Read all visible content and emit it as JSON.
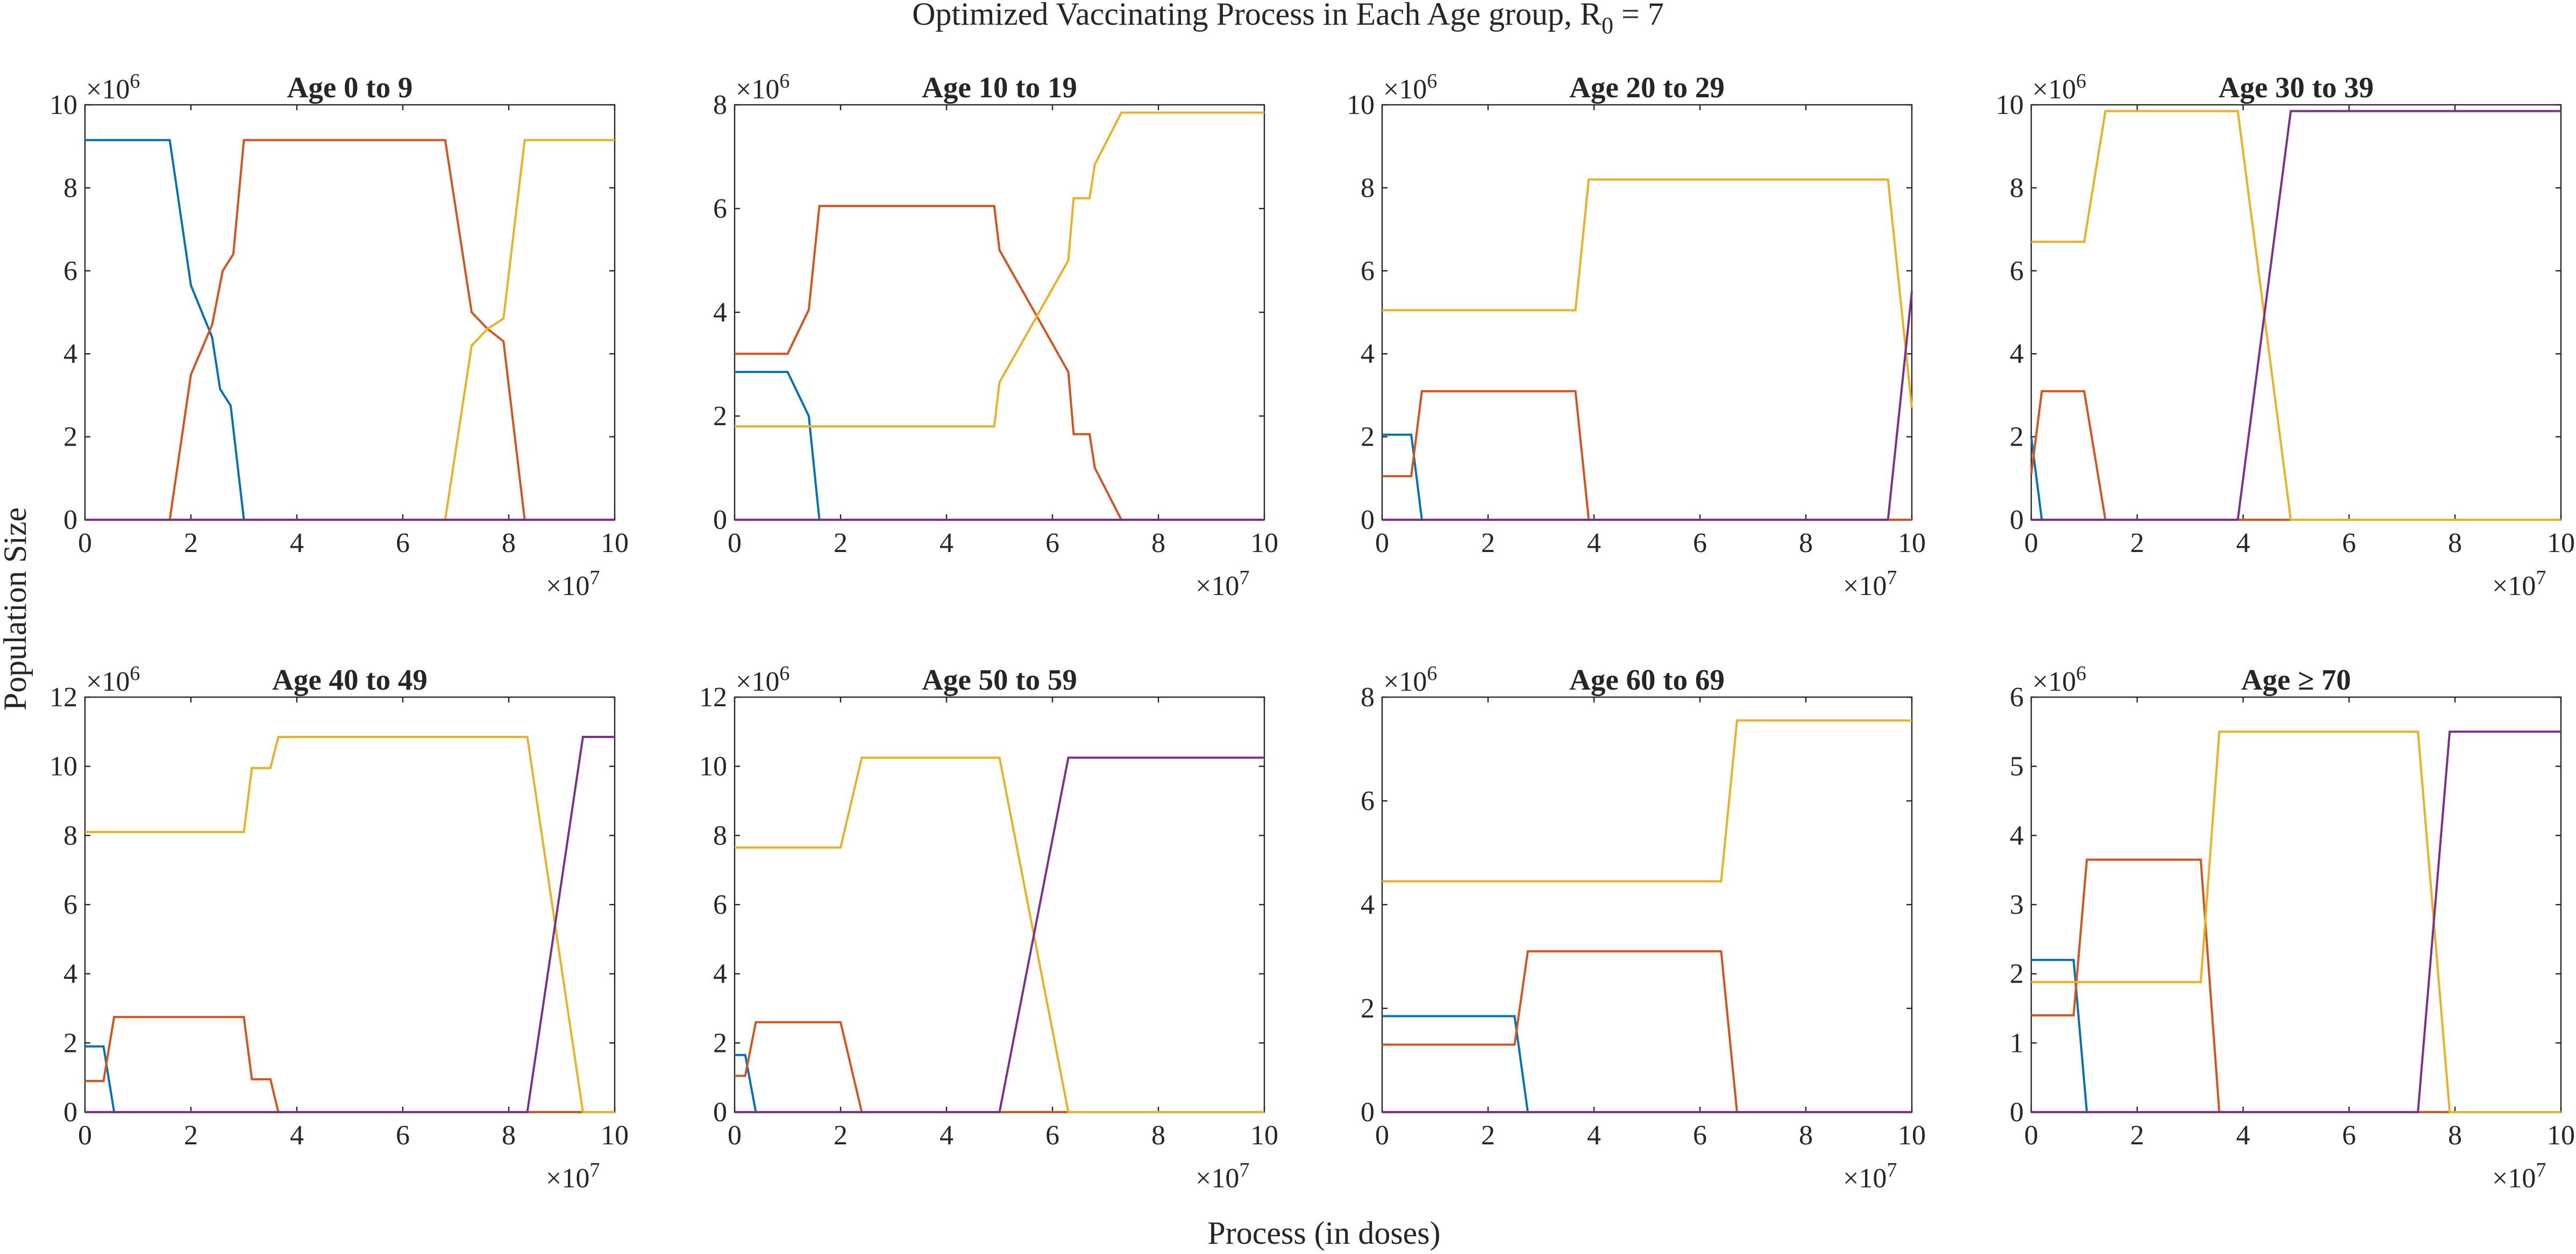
{
  "suptitle": {
    "main": "Optimized Vaccinating Process in Each Age group, R",
    "sub": "0",
    "tail": " = 7"
  },
  "ylabel": "Population Size",
  "xlabel": "Process (in doses)",
  "x_multiplier": {
    "base": "×10",
    "exp": "7"
  },
  "colors": {
    "blue": "#0072BD",
    "red": "#D95319",
    "yellow": "#EDB120",
    "purple": "#7E2F8E"
  },
  "chart_data": [
    {
      "type": "line",
      "title": "Age 0 to 9",
      "x_unit": 10000000,
      "y_unit": 1000000,
      "y_exp": "6",
      "xlim": [
        0,
        10
      ],
      "ylim": [
        0,
        10
      ],
      "xticks": [
        0,
        2,
        4,
        6,
        8,
        10
      ],
      "yticks": [
        0,
        2,
        4,
        6,
        8,
        10
      ],
      "series": [
        {
          "color": "#0072BD",
          "points": [
            [
              0,
              9.15
            ],
            [
              1.6,
              9.15
            ],
            [
              2.0,
              5.65
            ],
            [
              2.4,
              4.4
            ],
            [
              2.55,
              3.15
            ],
            [
              2.75,
              2.75
            ],
            [
              3.0,
              0
            ],
            [
              10,
              0
            ]
          ]
        },
        {
          "color": "#D95319",
          "points": [
            [
              0,
              0
            ],
            [
              1.6,
              0
            ],
            [
              2.0,
              3.5
            ],
            [
              2.4,
              4.7
            ],
            [
              2.6,
              6.0
            ],
            [
              2.8,
              6.4
            ],
            [
              3.0,
              9.15
            ],
            [
              6.8,
              9.15
            ],
            [
              7.3,
              5.0
            ],
            [
              7.6,
              4.6
            ],
            [
              7.9,
              4.3
            ],
            [
              8.3,
              0
            ],
            [
              10,
              0
            ]
          ]
        },
        {
          "color": "#EDB120",
          "points": [
            [
              0,
              0
            ],
            [
              6.8,
              0
            ],
            [
              7.3,
              4.2
            ],
            [
              7.6,
              4.6
            ],
            [
              7.9,
              4.85
            ],
            [
              8.3,
              9.15
            ],
            [
              10,
              9.15
            ]
          ]
        },
        {
          "color": "#7E2F8E",
          "points": [
            [
              0,
              0
            ],
            [
              10,
              0
            ]
          ]
        }
      ]
    },
    {
      "type": "line",
      "title": "Age 10 to 19",
      "x_unit": 10000000,
      "y_unit": 1000000,
      "y_exp": "6",
      "xlim": [
        0,
        10
      ],
      "ylim": [
        0,
        8
      ],
      "xticks": [
        0,
        2,
        4,
        6,
        8,
        10
      ],
      "yticks": [
        0,
        2,
        4,
        6,
        8
      ],
      "series": [
        {
          "color": "#0072BD",
          "points": [
            [
              0,
              2.85
            ],
            [
              1.0,
              2.85
            ],
            [
              1.4,
              2.0
            ],
            [
              1.6,
              0
            ],
            [
              10,
              0
            ]
          ]
        },
        {
          "color": "#D95319",
          "points": [
            [
              0,
              3.2
            ],
            [
              1.0,
              3.2
            ],
            [
              1.4,
              4.05
            ],
            [
              1.6,
              6.05
            ],
            [
              4.9,
              6.05
            ],
            [
              5.0,
              5.2
            ],
            [
              6.3,
              2.85
            ],
            [
              6.4,
              1.65
            ],
            [
              6.7,
              1.65
            ],
            [
              6.8,
              1.0
            ],
            [
              7.3,
              0
            ],
            [
              10,
              0
            ]
          ]
        },
        {
          "color": "#EDB120",
          "points": [
            [
              0,
              1.8
            ],
            [
              4.9,
              1.8
            ],
            [
              5.0,
              2.65
            ],
            [
              6.3,
              5.0
            ],
            [
              6.4,
              6.2
            ],
            [
              6.7,
              6.2
            ],
            [
              6.8,
              6.85
            ],
            [
              7.3,
              7.85
            ],
            [
              10,
              7.85
            ]
          ]
        },
        {
          "color": "#7E2F8E",
          "points": [
            [
              0,
              0
            ],
            [
              10,
              0
            ]
          ]
        }
      ]
    },
    {
      "type": "line",
      "title": "Age 20 to 29",
      "x_unit": 10000000,
      "y_unit": 1000000,
      "y_exp": "6",
      "xlim": [
        0,
        10
      ],
      "ylim": [
        0,
        10
      ],
      "xticks": [
        0,
        2,
        4,
        6,
        8,
        10
      ],
      "yticks": [
        0,
        2,
        4,
        6,
        8,
        10
      ],
      "series": [
        {
          "color": "#0072BD",
          "points": [
            [
              0,
              2.05
            ],
            [
              0.55,
              2.05
            ],
            [
              0.75,
              0
            ],
            [
              10,
              0
            ]
          ]
        },
        {
          "color": "#D95319",
          "points": [
            [
              0,
              1.05
            ],
            [
              0.55,
              1.05
            ],
            [
              0.75,
              3.1
            ],
            [
              3.65,
              3.1
            ],
            [
              3.9,
              0
            ],
            [
              10,
              0
            ]
          ]
        },
        {
          "color": "#EDB120",
          "points": [
            [
              0,
              5.05
            ],
            [
              3.65,
              5.05
            ],
            [
              3.9,
              8.2
            ],
            [
              9.55,
              8.2
            ],
            [
              10,
              2.7
            ]
          ]
        },
        {
          "color": "#7E2F8E",
          "points": [
            [
              0,
              0
            ],
            [
              9.55,
              0
            ],
            [
              10,
              5.5
            ]
          ]
        }
      ]
    },
    {
      "type": "line",
      "title": "Age 30 to 39",
      "x_unit": 10000000,
      "y_unit": 1000000,
      "y_exp": "6",
      "xlim": [
        0,
        10
      ],
      "ylim": [
        0,
        10
      ],
      "xticks": [
        0,
        2,
        4,
        6,
        8,
        10
      ],
      "yticks": [
        0,
        2,
        4,
        6,
        8,
        10
      ],
      "series": [
        {
          "color": "#0072BD",
          "points": [
            [
              0,
              2.0
            ],
            [
              0.2,
              0
            ],
            [
              10,
              0
            ]
          ]
        },
        {
          "color": "#D95319",
          "points": [
            [
              0,
              1.1
            ],
            [
              0.2,
              3.1
            ],
            [
              1.0,
              3.1
            ],
            [
              1.4,
              0
            ],
            [
              10,
              0
            ]
          ]
        },
        {
          "color": "#EDB120",
          "points": [
            [
              0,
              6.7
            ],
            [
              1.0,
              6.7
            ],
            [
              1.4,
              9.85
            ],
            [
              3.9,
              9.85
            ],
            [
              4.9,
              0
            ],
            [
              10,
              0
            ]
          ]
        },
        {
          "color": "#7E2F8E",
          "points": [
            [
              0,
              0
            ],
            [
              3.9,
              0
            ],
            [
              4.9,
              9.85
            ],
            [
              10,
              9.85
            ]
          ]
        }
      ]
    },
    {
      "type": "line",
      "title": "Age 40 to 49",
      "x_unit": 10000000,
      "y_unit": 1000000,
      "y_exp": "6",
      "xlim": [
        0,
        10
      ],
      "ylim": [
        0,
        12
      ],
      "xticks": [
        0,
        2,
        4,
        6,
        8,
        10
      ],
      "yticks": [
        0,
        2,
        4,
        6,
        8,
        10,
        12
      ],
      "series": [
        {
          "color": "#0072BD",
          "points": [
            [
              0,
              1.9
            ],
            [
              0.35,
              1.9
            ],
            [
              0.55,
              0
            ],
            [
              10,
              0
            ]
          ]
        },
        {
          "color": "#D95319",
          "points": [
            [
              0,
              0.9
            ],
            [
              0.35,
              0.9
            ],
            [
              0.55,
              2.75
            ],
            [
              3.0,
              2.75
            ],
            [
              3.15,
              0.95
            ],
            [
              3.5,
              0.95
            ],
            [
              3.65,
              0
            ],
            [
              10,
              0
            ]
          ]
        },
        {
          "color": "#EDB120",
          "points": [
            [
              0,
              8.1
            ],
            [
              3.0,
              8.1
            ],
            [
              3.15,
              9.95
            ],
            [
              3.5,
              9.95
            ],
            [
              3.65,
              10.85
            ],
            [
              8.35,
              10.85
            ],
            [
              9.4,
              0
            ],
            [
              10,
              0
            ]
          ]
        },
        {
          "color": "#7E2F8E",
          "points": [
            [
              0,
              0
            ],
            [
              8.35,
              0
            ],
            [
              9.4,
              10.85
            ],
            [
              10,
              10.85
            ]
          ]
        }
      ]
    },
    {
      "type": "line",
      "title": "Age 50 to 59",
      "x_unit": 10000000,
      "y_unit": 1000000,
      "y_exp": "6",
      "xlim": [
        0,
        10
      ],
      "ylim": [
        0,
        12
      ],
      "xticks": [
        0,
        2,
        4,
        6,
        8,
        10
      ],
      "yticks": [
        0,
        2,
        4,
        6,
        8,
        10,
        12
      ],
      "series": [
        {
          "color": "#0072BD",
          "points": [
            [
              0,
              1.65
            ],
            [
              0.2,
              1.65
            ],
            [
              0.4,
              0
            ],
            [
              10,
              0
            ]
          ]
        },
        {
          "color": "#D95319",
          "points": [
            [
              0,
              1.05
            ],
            [
              0.2,
              1.05
            ],
            [
              0.4,
              2.6
            ],
            [
              2.0,
              2.6
            ],
            [
              2.4,
              0
            ],
            [
              10,
              0
            ]
          ]
        },
        {
          "color": "#EDB120",
          "points": [
            [
              0,
              7.65
            ],
            [
              2.0,
              7.65
            ],
            [
              2.4,
              10.25
            ],
            [
              5.0,
              10.25
            ],
            [
              6.3,
              0
            ],
            [
              10,
              0
            ]
          ]
        },
        {
          "color": "#7E2F8E",
          "points": [
            [
              0,
              0
            ],
            [
              5.0,
              0
            ],
            [
              6.3,
              10.25
            ],
            [
              10,
              10.25
            ]
          ]
        }
      ]
    },
    {
      "type": "line",
      "title": "Age 60 to 69",
      "x_unit": 10000000,
      "y_unit": 1000000,
      "y_exp": "6",
      "xlim": [
        0,
        10
      ],
      "ylim": [
        0,
        8
      ],
      "xticks": [
        0,
        2,
        4,
        6,
        8,
        10
      ],
      "yticks": [
        0,
        2,
        4,
        6,
        8
      ],
      "series": [
        {
          "color": "#0072BD",
          "points": [
            [
              0,
              1.85
            ],
            [
              2.5,
              1.85
            ],
            [
              2.75,
              0
            ],
            [
              10,
              0
            ]
          ]
        },
        {
          "color": "#D95319",
          "points": [
            [
              0,
              1.3
            ],
            [
              2.5,
              1.3
            ],
            [
              2.75,
              3.1
            ],
            [
              6.4,
              3.1
            ],
            [
              6.7,
              0
            ],
            [
              10,
              0
            ]
          ]
        },
        {
          "color": "#EDB120",
          "points": [
            [
              0,
              4.45
            ],
            [
              6.4,
              4.45
            ],
            [
              6.7,
              7.55
            ],
            [
              10,
              7.55
            ]
          ]
        },
        {
          "color": "#7E2F8E",
          "points": [
            [
              0,
              0
            ],
            [
              10,
              0
            ]
          ]
        }
      ]
    },
    {
      "type": "line",
      "title": "Age ≥ 70",
      "x_unit": 10000000,
      "y_unit": 1000000,
      "y_exp": "6",
      "xlim": [
        0,
        10
      ],
      "ylim": [
        0,
        6
      ],
      "xticks": [
        0,
        2,
        4,
        6,
        8,
        10
      ],
      "yticks": [
        0,
        1,
        2,
        3,
        4,
        5,
        6
      ],
      "series": [
        {
          "color": "#0072BD",
          "points": [
            [
              0,
              2.2
            ],
            [
              0.8,
              2.2
            ],
            [
              1.05,
              0
            ],
            [
              10,
              0
            ]
          ]
        },
        {
          "color": "#D95319",
          "points": [
            [
              0,
              1.4
            ],
            [
              0.8,
              1.4
            ],
            [
              1.05,
              3.65
            ],
            [
              3.2,
              3.65
            ],
            [
              3.55,
              0
            ],
            [
              10,
              0
            ]
          ]
        },
        {
          "color": "#EDB120",
          "points": [
            [
              0,
              1.88
            ],
            [
              3.2,
              1.88
            ],
            [
              3.55,
              5.5
            ],
            [
              7.3,
              5.5
            ],
            [
              7.9,
              0
            ],
            [
              10,
              0
            ]
          ]
        },
        {
          "color": "#7E2F8E",
          "points": [
            [
              0,
              0
            ],
            [
              7.3,
              0
            ],
            [
              7.9,
              5.5
            ],
            [
              10,
              5.5
            ]
          ]
        }
      ]
    }
  ]
}
